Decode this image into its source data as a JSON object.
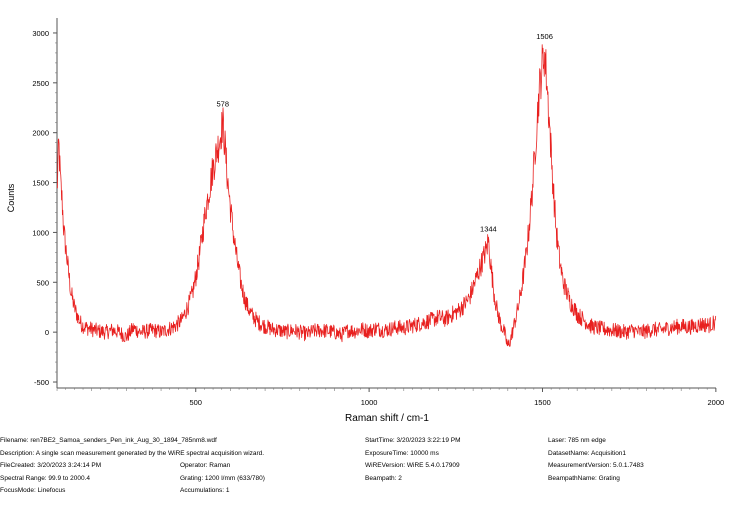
{
  "chart_data": {
    "type": "line",
    "xlabel": "Raman shift / cm-1",
    "ylabel": "Counts",
    "xlim": [
      99.9,
      2000.4
    ],
    "ylim": [
      -560,
      3150
    ],
    "x_ticks": [
      500,
      1000,
      1500,
      2000
    ],
    "y_ticks": [
      -500,
      0,
      500,
      1000,
      1500,
      2000,
      2500,
      3000
    ],
    "grid": false,
    "line_color": "#e8201f",
    "peak_labels": [
      {
        "x": 578,
        "y": 2200,
        "label": "578"
      },
      {
        "x": 1344,
        "y": 950,
        "label": "1344"
      },
      {
        "x": 1506,
        "y": 2880,
        "label": "1506"
      }
    ],
    "series": [
      {
        "x": [
          100,
          105,
          110,
          115,
          120,
          130,
          140,
          150,
          160,
          170,
          180,
          200,
          220,
          240,
          260,
          280,
          300,
          320,
          340,
          360,
          380,
          400,
          420,
          440,
          460,
          470,
          480,
          490,
          500,
          510,
          520,
          530,
          540,
          550,
          560,
          570,
          578,
          585,
          590,
          600,
          610,
          620,
          630,
          640,
          650,
          660,
          680,
          700,
          720,
          740,
          760,
          780,
          800,
          820,
          840,
          860,
          880,
          900,
          920,
          940,
          960,
          980,
          1000,
          1020,
          1040,
          1060,
          1080,
          1100,
          1120,
          1140,
          1160,
          1180,
          1200,
          1220,
          1240,
          1260,
          1280,
          1290,
          1300,
          1310,
          1320,
          1330,
          1340,
          1344,
          1350,
          1360,
          1370,
          1380,
          1390,
          1400,
          1410,
          1420,
          1430,
          1440,
          1450,
          1460,
          1470,
          1480,
          1490,
          1500,
          1506,
          1512,
          1520,
          1530,
          1540,
          1550,
          1560,
          1570,
          1580,
          1590,
          1600,
          1620,
          1640,
          1660,
          1680,
          1700,
          1720,
          1740,
          1760,
          1780,
          1800,
          1820,
          1840,
          1860,
          1880,
          1900,
          1920,
          1940,
          1960,
          1980,
          2000
        ],
        "y": [
          1400,
          1900,
          1500,
          1300,
          1000,
          700,
          400,
          250,
          150,
          80,
          50,
          30,
          10,
          0,
          20,
          0,
          -50,
          40,
          0,
          10,
          20,
          0,
          30,
          60,
          120,
          200,
          280,
          380,
          550,
          750,
          1000,
          1250,
          1450,
          1650,
          1800,
          1950,
          2100,
          1850,
          1600,
          1250,
          950,
          700,
          500,
          350,
          250,
          180,
          100,
          60,
          30,
          20,
          0,
          20,
          0,
          -20,
          10,
          20,
          10,
          0,
          -30,
          20,
          10,
          30,
          10,
          40,
          20,
          30,
          50,
          40,
          60,
          80,
          100,
          120,
          150,
          130,
          180,
          220,
          300,
          350,
          450,
          550,
          650,
          750,
          850,
          930,
          700,
          400,
          200,
          80,
          0,
          -150,
          -50,
          100,
          250,
          450,
          700,
          1000,
          1400,
          1900,
          2400,
          2700,
          2800,
          2550,
          2100,
          1500,
          1000,
          700,
          500,
          400,
          300,
          250,
          180,
          120,
          60,
          40,
          30,
          20,
          10,
          0,
          20,
          0,
          10,
          30,
          20,
          40,
          50,
          60,
          50,
          60,
          80,
          70,
          100
        ]
      }
    ]
  },
  "info": {
    "filename": "Filename: ren7BE2_Samoa_senders_Pen_ink_Aug_30_1894_785nm8.wdf",
    "description": "Description: A single scan measurement generated by the WiRE spectral acquisition wizard.",
    "file_created": "FileCreated: 3/20/2023 3:24:14 PM",
    "spectral_range": "Spectral Range: 99.9 to 2000.4",
    "focus_mode": "FocusMode: Linefocus",
    "operator": "Operator: Raman",
    "grating": "Grating: 1200 l/mm (633/780)",
    "accumulations": "Accumulations: 1",
    "start_time": "StartTime: 3/20/2023 3:22:19 PM",
    "exposure_time": "ExposureTime: 10000 ms",
    "wire_version": "WiREVersion: WiRE 5.4.0.17909",
    "beampath": "Beampath: 2",
    "laser": "Laser: 785 nm edge",
    "dataset_name": "DatasetName: Acquisition1",
    "measurement_version": "MeasurementVersion: 5.0.1.7483",
    "beampath_name": "BeampathName: Grating"
  }
}
